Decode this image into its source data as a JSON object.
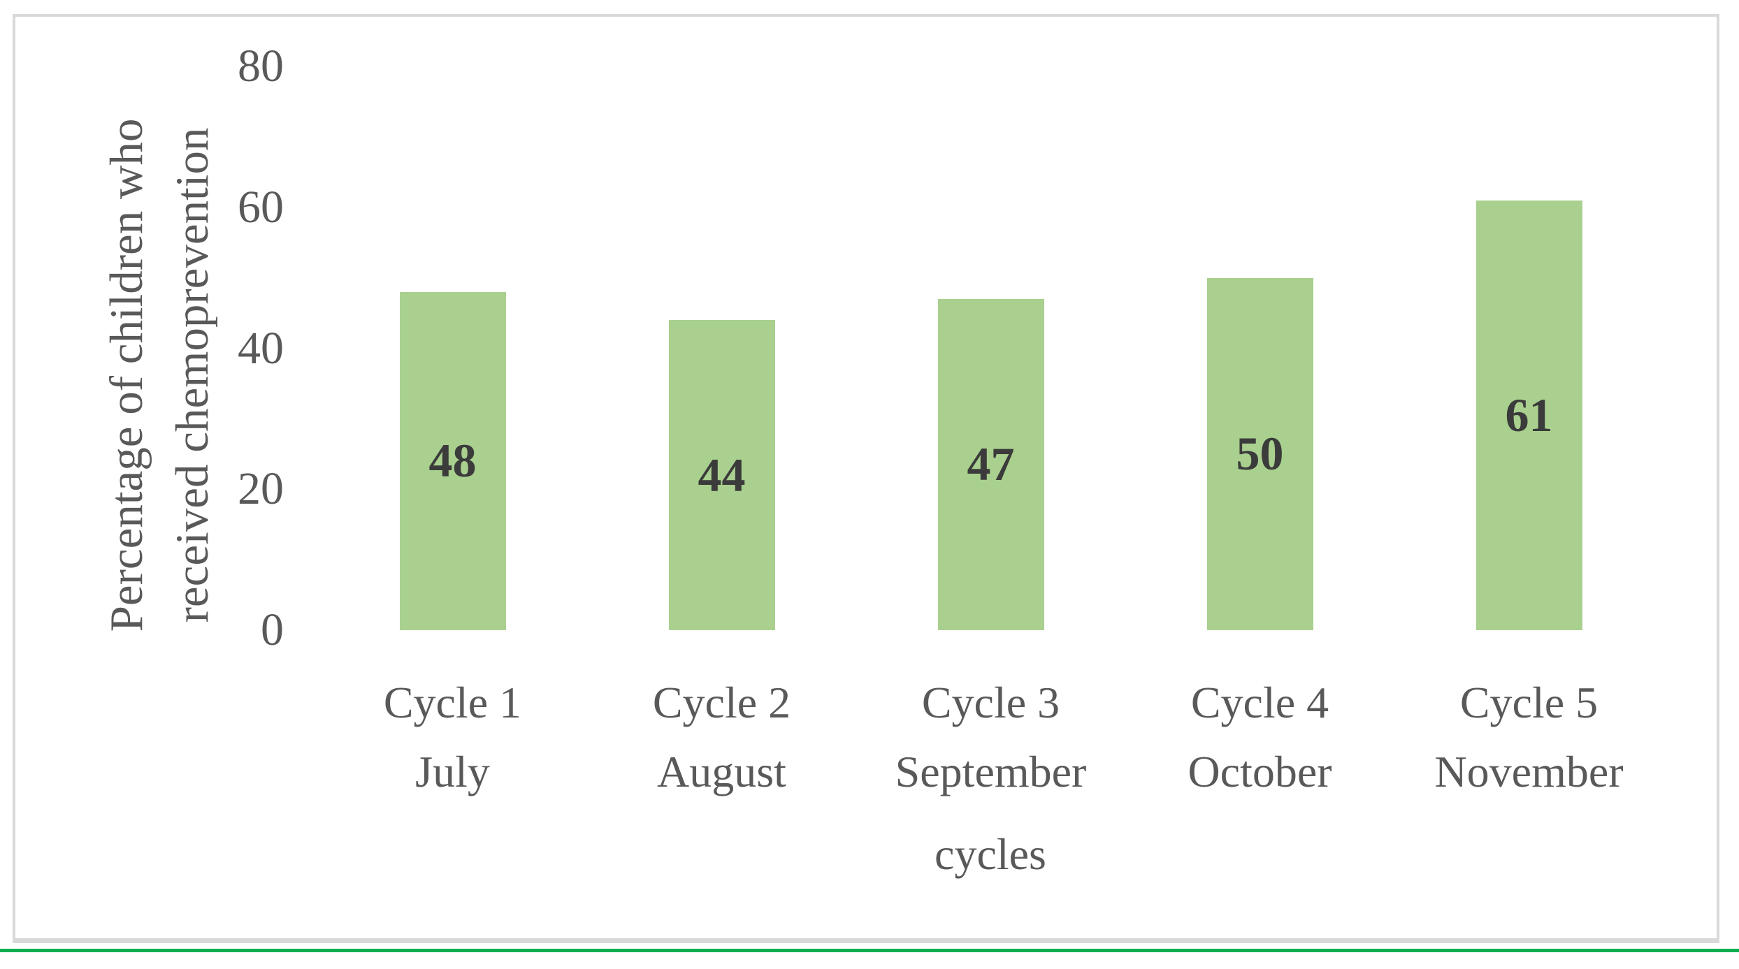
{
  "figure_type": "bar-chart-figure",
  "chart_data": {
    "type": "bar",
    "title": "",
    "categories": [
      [
        "Cycle 1",
        "July"
      ],
      [
        "Cycle 2",
        "August"
      ],
      [
        "Cycle 3",
        "September"
      ],
      [
        "Cycle 4",
        "October"
      ],
      [
        "Cycle 5",
        "November"
      ]
    ],
    "values": [
      48,
      44,
      47,
      50,
      61
    ],
    "bar_labels": [
      "48",
      "44",
      "47",
      "50",
      "61"
    ],
    "xlabel": "cycles",
    "ylabel": "Percentage of children who received chemoprevention",
    "ylabel_lines": [
      "Percentage of children who",
      "received chemoprevention"
    ],
    "yticks": [
      0,
      20,
      40,
      60,
      80
    ],
    "ylim": [
      0,
      80
    ],
    "grid": false,
    "legend": false,
    "bar_label_position": "inside-center"
  },
  "colors": {
    "bar_fill": "#a9d08e",
    "bar_label": "#3b3b3b",
    "axis_text": "#595959",
    "frame_border": "#d9d9d9",
    "bottom_rule_green": "#0daf4f",
    "background": "#ffffff"
  }
}
